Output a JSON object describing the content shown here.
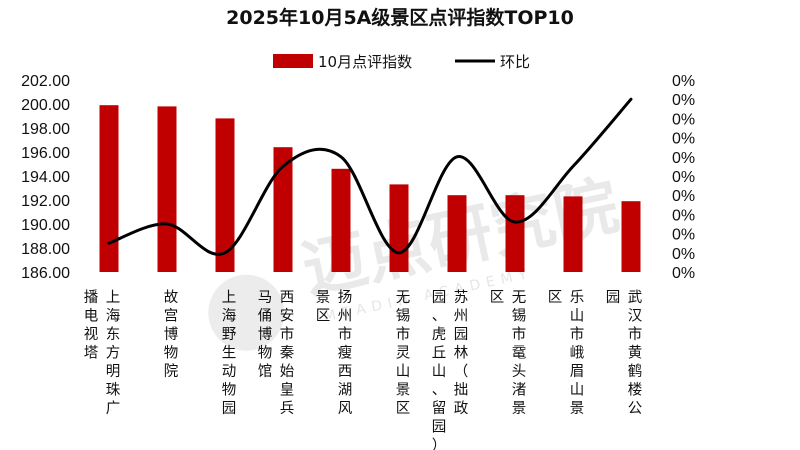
{
  "chart_data": {
    "type": "bar",
    "title": "2025年10月5A级景区点评指数TOP10",
    "categories": [
      "上海东方明珠广播电视塔",
      "故宫博物院",
      "上海野生动物园",
      "西安市秦始皇兵马俑博物馆",
      "扬州市瘦西湖风景区",
      "无锡市灵山景区",
      "苏州园林（拙政园、虎丘山、留园）",
      "无锡市鼋头渚景区",
      "乐山市峨眉山景区",
      "武汉市黄鹤楼公园"
    ],
    "category_lines": [
      {
        "first": "上海东方明珠广",
        "second": "播电视塔"
      },
      {
        "first": "故宫博物院",
        "second": ""
      },
      {
        "first": "上海野生动物园",
        "second": ""
      },
      {
        "first": "西安市秦始皇兵",
        "second": "马俑博物馆"
      },
      {
        "first": "扬州市瘦西湖风",
        "second": "景区"
      },
      {
        "first": "无锡市灵山景区",
        "second": ""
      },
      {
        "first": "苏州园林（拙政",
        "second": "园、虎丘山、留园）"
      },
      {
        "first": "无锡市鼋头渚景",
        "second": "区"
      },
      {
        "first": "乐山市峨眉山景",
        "second": "区"
      },
      {
        "first": "武汉市黄鹤楼公",
        "second": "园"
      }
    ],
    "series": [
      {
        "name": "10月点评指数",
        "type": "bar",
        "axis": "left",
        "color": "#c00000",
        "values": [
          199.9,
          199.8,
          198.8,
          196.4,
          194.6,
          193.3,
          192.4,
          192.4,
          192.3,
          191.9
        ]
      },
      {
        "name": "环比",
        "type": "line",
        "axis": "right",
        "color": "#000000",
        "values": [
          0.15,
          0.25,
          0.1,
          0.55,
          0.6,
          0.1,
          0.6,
          0.26,
          0.55,
          0.9
        ]
      }
    ],
    "y_left": {
      "ylim": [
        186,
        202
      ],
      "ticks": [
        "186.00",
        "188.00",
        "190.00",
        "192.00",
        "194.00",
        "196.00",
        "198.00",
        "200.00",
        "202.00"
      ]
    },
    "y_right": {
      "ylim": [
        0,
        1
      ],
      "ticks": [
        "0%",
        "0%",
        "0%",
        "0%",
        "0%",
        "0%",
        "0%",
        "0%",
        "0%",
        "0%",
        "0%"
      ]
    },
    "legend_position": "top-center",
    "grid": false
  },
  "watermark": {
    "main": "迈点研究院",
    "sub": "MEADIN ACADEMY"
  }
}
